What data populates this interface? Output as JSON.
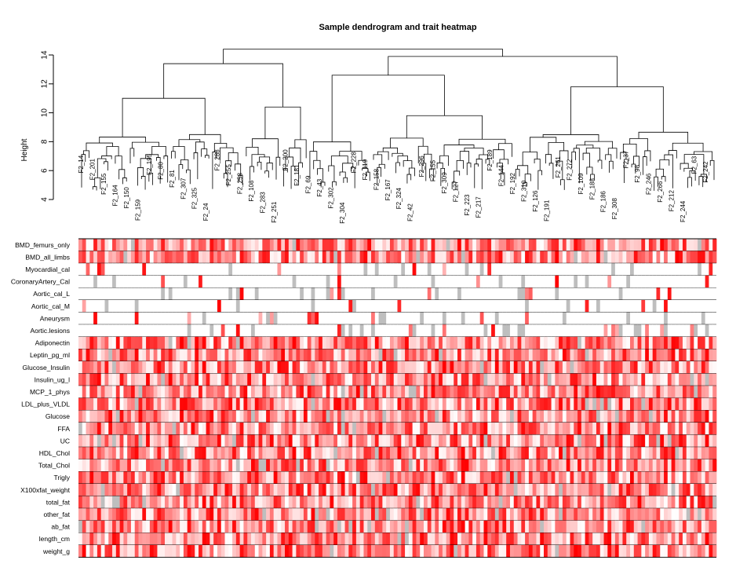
{
  "chart_data": [
    {
      "type": "dendrogram",
      "title": "Sample dendrogram and trait heatmap",
      "ylabel": "Height",
      "y_ticks": [
        4,
        6,
        8,
        10,
        12,
        14
      ],
      "ylim": [
        4,
        15
      ],
      "leaf_labels": [
        "F2_14",
        "F2_201",
        "F2_155",
        "F2_164",
        "F2_150",
        "F2_159",
        "F2_195",
        "F2_80",
        "F2_81",
        "F2_307",
        "F2_325",
        "F2_24",
        "F2_288",
        "F2_255",
        "F2_258",
        "F2_108",
        "F2_283",
        "F2_251",
        "F2_200",
        "F2_181",
        "F2_69",
        "F2_43",
        "F2_302",
        "F2_304",
        "F2_228",
        "F2_119",
        "F2_158",
        "F2_167",
        "F2_324",
        "F2_42",
        "F2_296",
        "F2_155",
        "F2_309",
        "F2_127",
        "F2_223",
        "F2_217",
        "F2_189",
        "F2_144",
        "F2_192",
        "F2_310",
        "F2_126",
        "F2_191",
        "F2_261",
        "F2_272",
        "F2_109",
        "F2_188",
        "F2_186",
        "F2_308",
        "F2_37",
        "F2_98",
        "F2_246",
        "F2_266",
        "F2_212",
        "F2_244",
        "F2_63",
        "F2_242"
      ]
    },
    {
      "type": "heatmap",
      "rows": [
        "BMD_femurs_only",
        "BMD_all_limbs",
        "Myocardial_cal",
        "CoronaryArtery_Cal",
        "Aortic_cal_L",
        "Aortic_cal_M",
        "Aneurysm",
        "Aortic.lesions",
        "Adiponectin",
        "Leptin_pg_ml",
        "Glucose_Insulin",
        "Insulin_ug_l",
        "MCP_1_phys",
        "LDL_plus_VLDL",
        "Glucose",
        "FFA",
        "UC",
        "HDL_Chol",
        "Total_Chol",
        "Trigly",
        "X100xfat_weight",
        "total_fat",
        "other_fat",
        "ab_fat",
        "length_cm",
        "weight_g"
      ],
      "colors": {
        "low": "#ffffff",
        "high": "#ff0000",
        "missing": "#bebebe"
      }
    }
  ]
}
